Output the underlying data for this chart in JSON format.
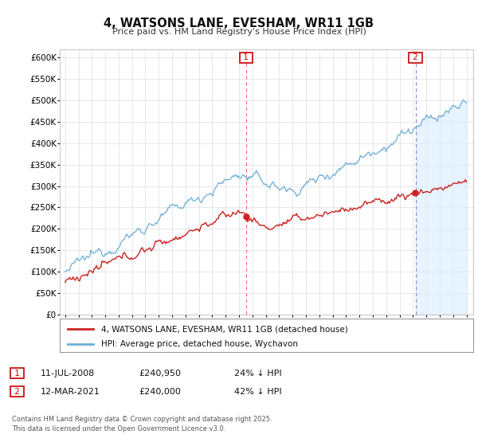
{
  "title": "4, WATSONS LANE, EVESHAM, WR11 1GB",
  "subtitle": "Price paid vs. HM Land Registry's House Price Index (HPI)",
  "ylabel_ticks": [
    "£0",
    "£50K",
    "£100K",
    "£150K",
    "£200K",
    "£250K",
    "£300K",
    "£350K",
    "£400K",
    "£450K",
    "£500K",
    "£550K",
    "£600K"
  ],
  "ylim": [
    0,
    620000
  ],
  "ytick_vals": [
    0,
    50000,
    100000,
    150000,
    200000,
    250000,
    300000,
    350000,
    400000,
    450000,
    500000,
    550000,
    600000
  ],
  "hpi_color": "#6baed6",
  "hpi_fill_color": "#ddeeff",
  "price_color": "#cc2222",
  "vline1_color": "#ff6666",
  "vline2_color": "#8888cc",
  "marker1_year": 2008.53,
  "marker2_year": 2021.19,
  "marker1_price": 240950,
  "marker2_price": 240000,
  "legend_label1": "4, WATSONS LANE, EVESHAM, WR11 1GB (detached house)",
  "legend_label2": "HPI: Average price, detached house, Wychavon",
  "annotation1_date": "11-JUL-2008",
  "annotation1_price": "£240,950",
  "annotation1_hpi": "24% ↓ HPI",
  "annotation2_date": "12-MAR-2021",
  "annotation2_price": "£240,000",
  "annotation2_hpi": "42% ↓ HPI",
  "footer": "Contains HM Land Registry data © Crown copyright and database right 2025.\nThis data is licensed under the Open Government Licence v3.0.",
  "bg_color": "#ffffff",
  "grid_color": "#dddddd"
}
